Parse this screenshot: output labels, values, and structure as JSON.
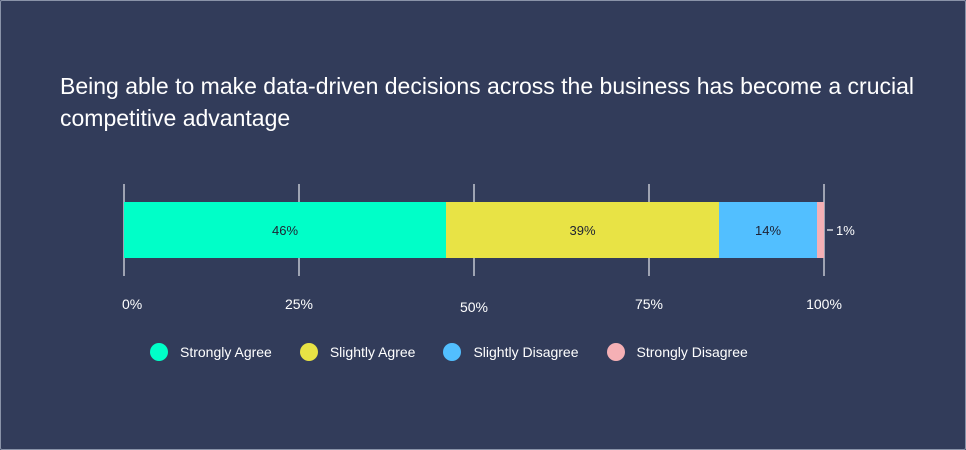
{
  "chart_data": {
    "type": "bar",
    "orientation": "horizontal-stacked",
    "title": "Being able to make data-driven decisions across the business has become a crucial competitive advantage",
    "xlim": [
      0,
      100
    ],
    "ticks": [
      0,
      25,
      50,
      75,
      100
    ],
    "tick_labels": [
      "0%",
      "25%",
      "50%",
      "75%",
      "100%"
    ],
    "grid": true,
    "legend_position": "bottom",
    "series": [
      {
        "name": "Strongly Agree",
        "value": 46,
        "label": "46%",
        "color": "#00ffc8"
      },
      {
        "name": "Slightly Agree",
        "value": 39,
        "label": "39%",
        "color": "#e8e345"
      },
      {
        "name": "Slightly Disagree",
        "value": 14,
        "label": "14%",
        "color": "#52bfff"
      },
      {
        "name": "Strongly Disagree",
        "value": 1,
        "label": "1%",
        "color": "#f5b0b5"
      }
    ]
  }
}
